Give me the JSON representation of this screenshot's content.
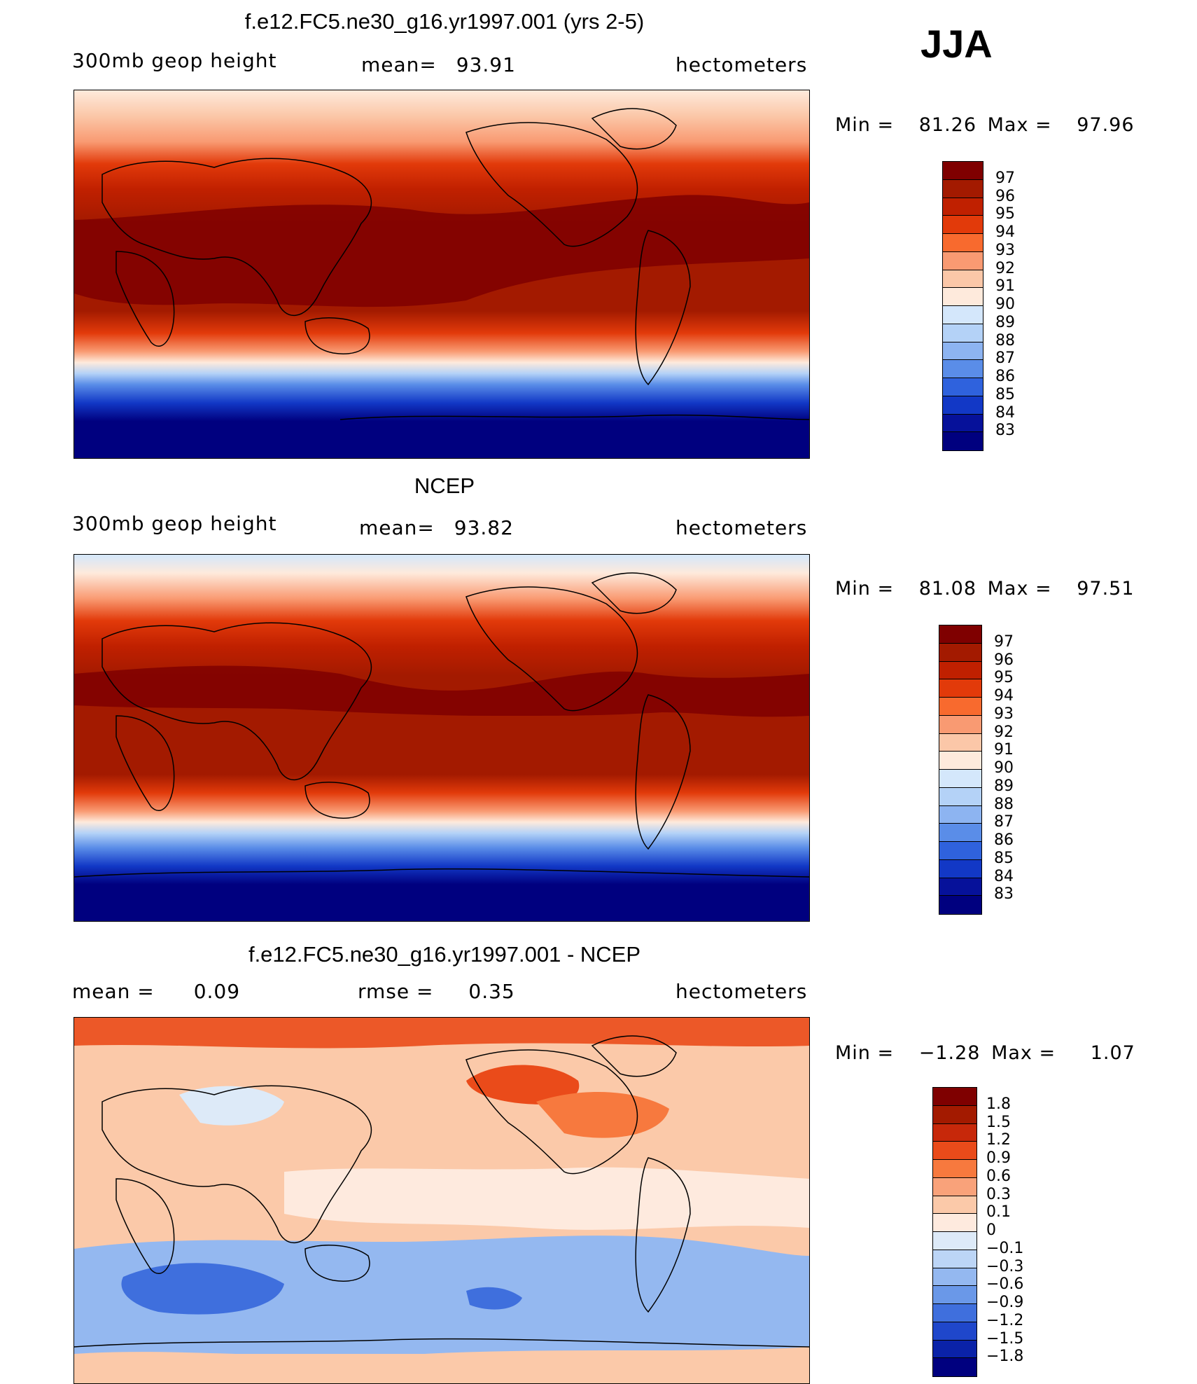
{
  "season": "JJA",
  "panels": [
    {
      "title": "f.e12.FC5.ne30_g16.yr1997.001 (yrs 2-5)",
      "left_label": "300mb geop height",
      "center_label": "mean=",
      "center_value": "93.91",
      "right_label": "hectometers",
      "min_label": "Min =",
      "min_value": "81.26",
      "max_label": "Max =",
      "max_value": "97.96",
      "colorbar_levels": [
        "97",
        "96",
        "95",
        "94",
        "93",
        "92",
        "91",
        "90",
        "89",
        "88",
        "87",
        "86",
        "85",
        "84",
        "83"
      ]
    },
    {
      "title": "NCEP",
      "left_label": "300mb geop height",
      "center_label": "mean=",
      "center_value": "93.82",
      "right_label": "hectometers",
      "min_label": "Min =",
      "min_value": "81.08",
      "max_label": "Max =",
      "max_value": "97.51",
      "colorbar_levels": [
        "97",
        "96",
        "95",
        "94",
        "93",
        "92",
        "91",
        "90",
        "89",
        "88",
        "87",
        "86",
        "85",
        "84",
        "83"
      ]
    },
    {
      "title": "f.e12.FC5.ne30_g16.yr1997.001 - NCEP",
      "left_label": "mean =",
      "left_value": "0.09",
      "center_label": "rmse =",
      "center_value": "0.35",
      "right_label": "hectometers",
      "min_label": "Min =",
      "min_value": "−1.28",
      "max_label": "Max =",
      "max_value": "1.07",
      "colorbar_levels": [
        "1.8",
        "1.5",
        "1.2",
        "0.9",
        "0.6",
        "0.3",
        "0.1",
        "0",
        "−0.1",
        "−0.3",
        "−0.6",
        "−0.9",
        "−1.2",
        "−1.5",
        "−1.8"
      ]
    }
  ],
  "colors": {
    "abs_scale": [
      "#7f0000",
      "#a31a00",
      "#c02000",
      "#e23a0a",
      "#f86a2e",
      "#f99a72",
      "#fbc7a8",
      "#feeadc",
      "#d4e7fb",
      "#b4d2f7",
      "#8db4f1",
      "#5a8de8",
      "#2f62dd",
      "#1238c6",
      "#06119a",
      "#00007f"
    ],
    "diff_scale": [
      "#7f0000",
      "#a31a00",
      "#c7280a",
      "#ea4b1a",
      "#f7793e",
      "#f9a27a",
      "#fbc9a9",
      "#feeade",
      "#ddeaf8",
      "#bcd5f6",
      "#94b8f0",
      "#6a98e8",
      "#3f6fdd",
      "#1f47cb",
      "#0a22a8",
      "#00007f"
    ]
  }
}
